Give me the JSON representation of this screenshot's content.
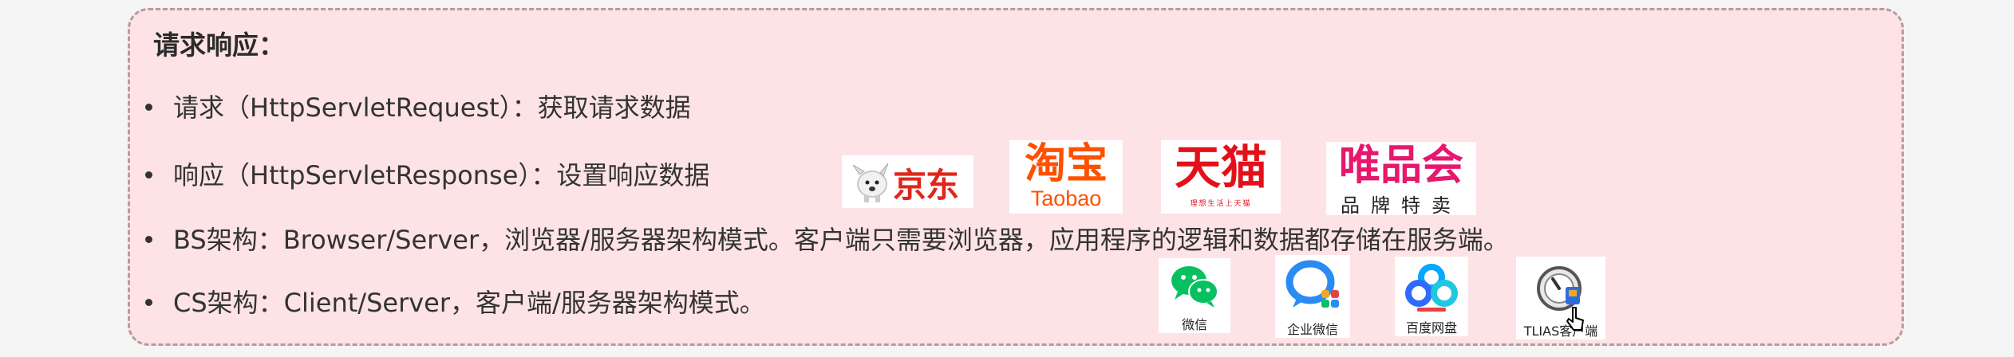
{
  "section": {
    "title": "请求响应：",
    "items": [
      "请求（HttpServletRequest）：获取请求数据",
      "响应（HttpServletResponse）：设置响应数据",
      "BS架构：Browser/Server，浏览器/服务器架构模式。客户端只需要浏览器，应用程序的逻辑和数据都存储在服务端。",
      "CS架构：Client/Server，客户端/服务器架构模式。"
    ]
  },
  "bs_logos": {
    "jd": "京东",
    "taobao_cn": "淘宝",
    "taobao_en": "Taobao",
    "tmall": "天猫",
    "tmall_slogan": "理想生活上天猫",
    "vip": "唯品会",
    "vip_sub": "品牌特卖"
  },
  "cs_apps": [
    {
      "label": "微信",
      "icon": "wechat-icon"
    },
    {
      "label": "企业微信",
      "icon": "wecom-icon"
    },
    {
      "label": "百度网盘",
      "icon": "baidu-netdisk-icon"
    },
    {
      "label": "TLIAS客户端",
      "icon": "tlias-client-icon"
    }
  ],
  "colors": {
    "card_bg": "#fde3e6",
    "card_border": "#b89aa0",
    "jd_red": "#e1251b",
    "taobao_orange": "#ff5000",
    "tmall_red": "#e3101a",
    "vip_pink": "#e6186e",
    "wechat_green": "#07c160",
    "wecom_blue": "#2a8bf2"
  }
}
